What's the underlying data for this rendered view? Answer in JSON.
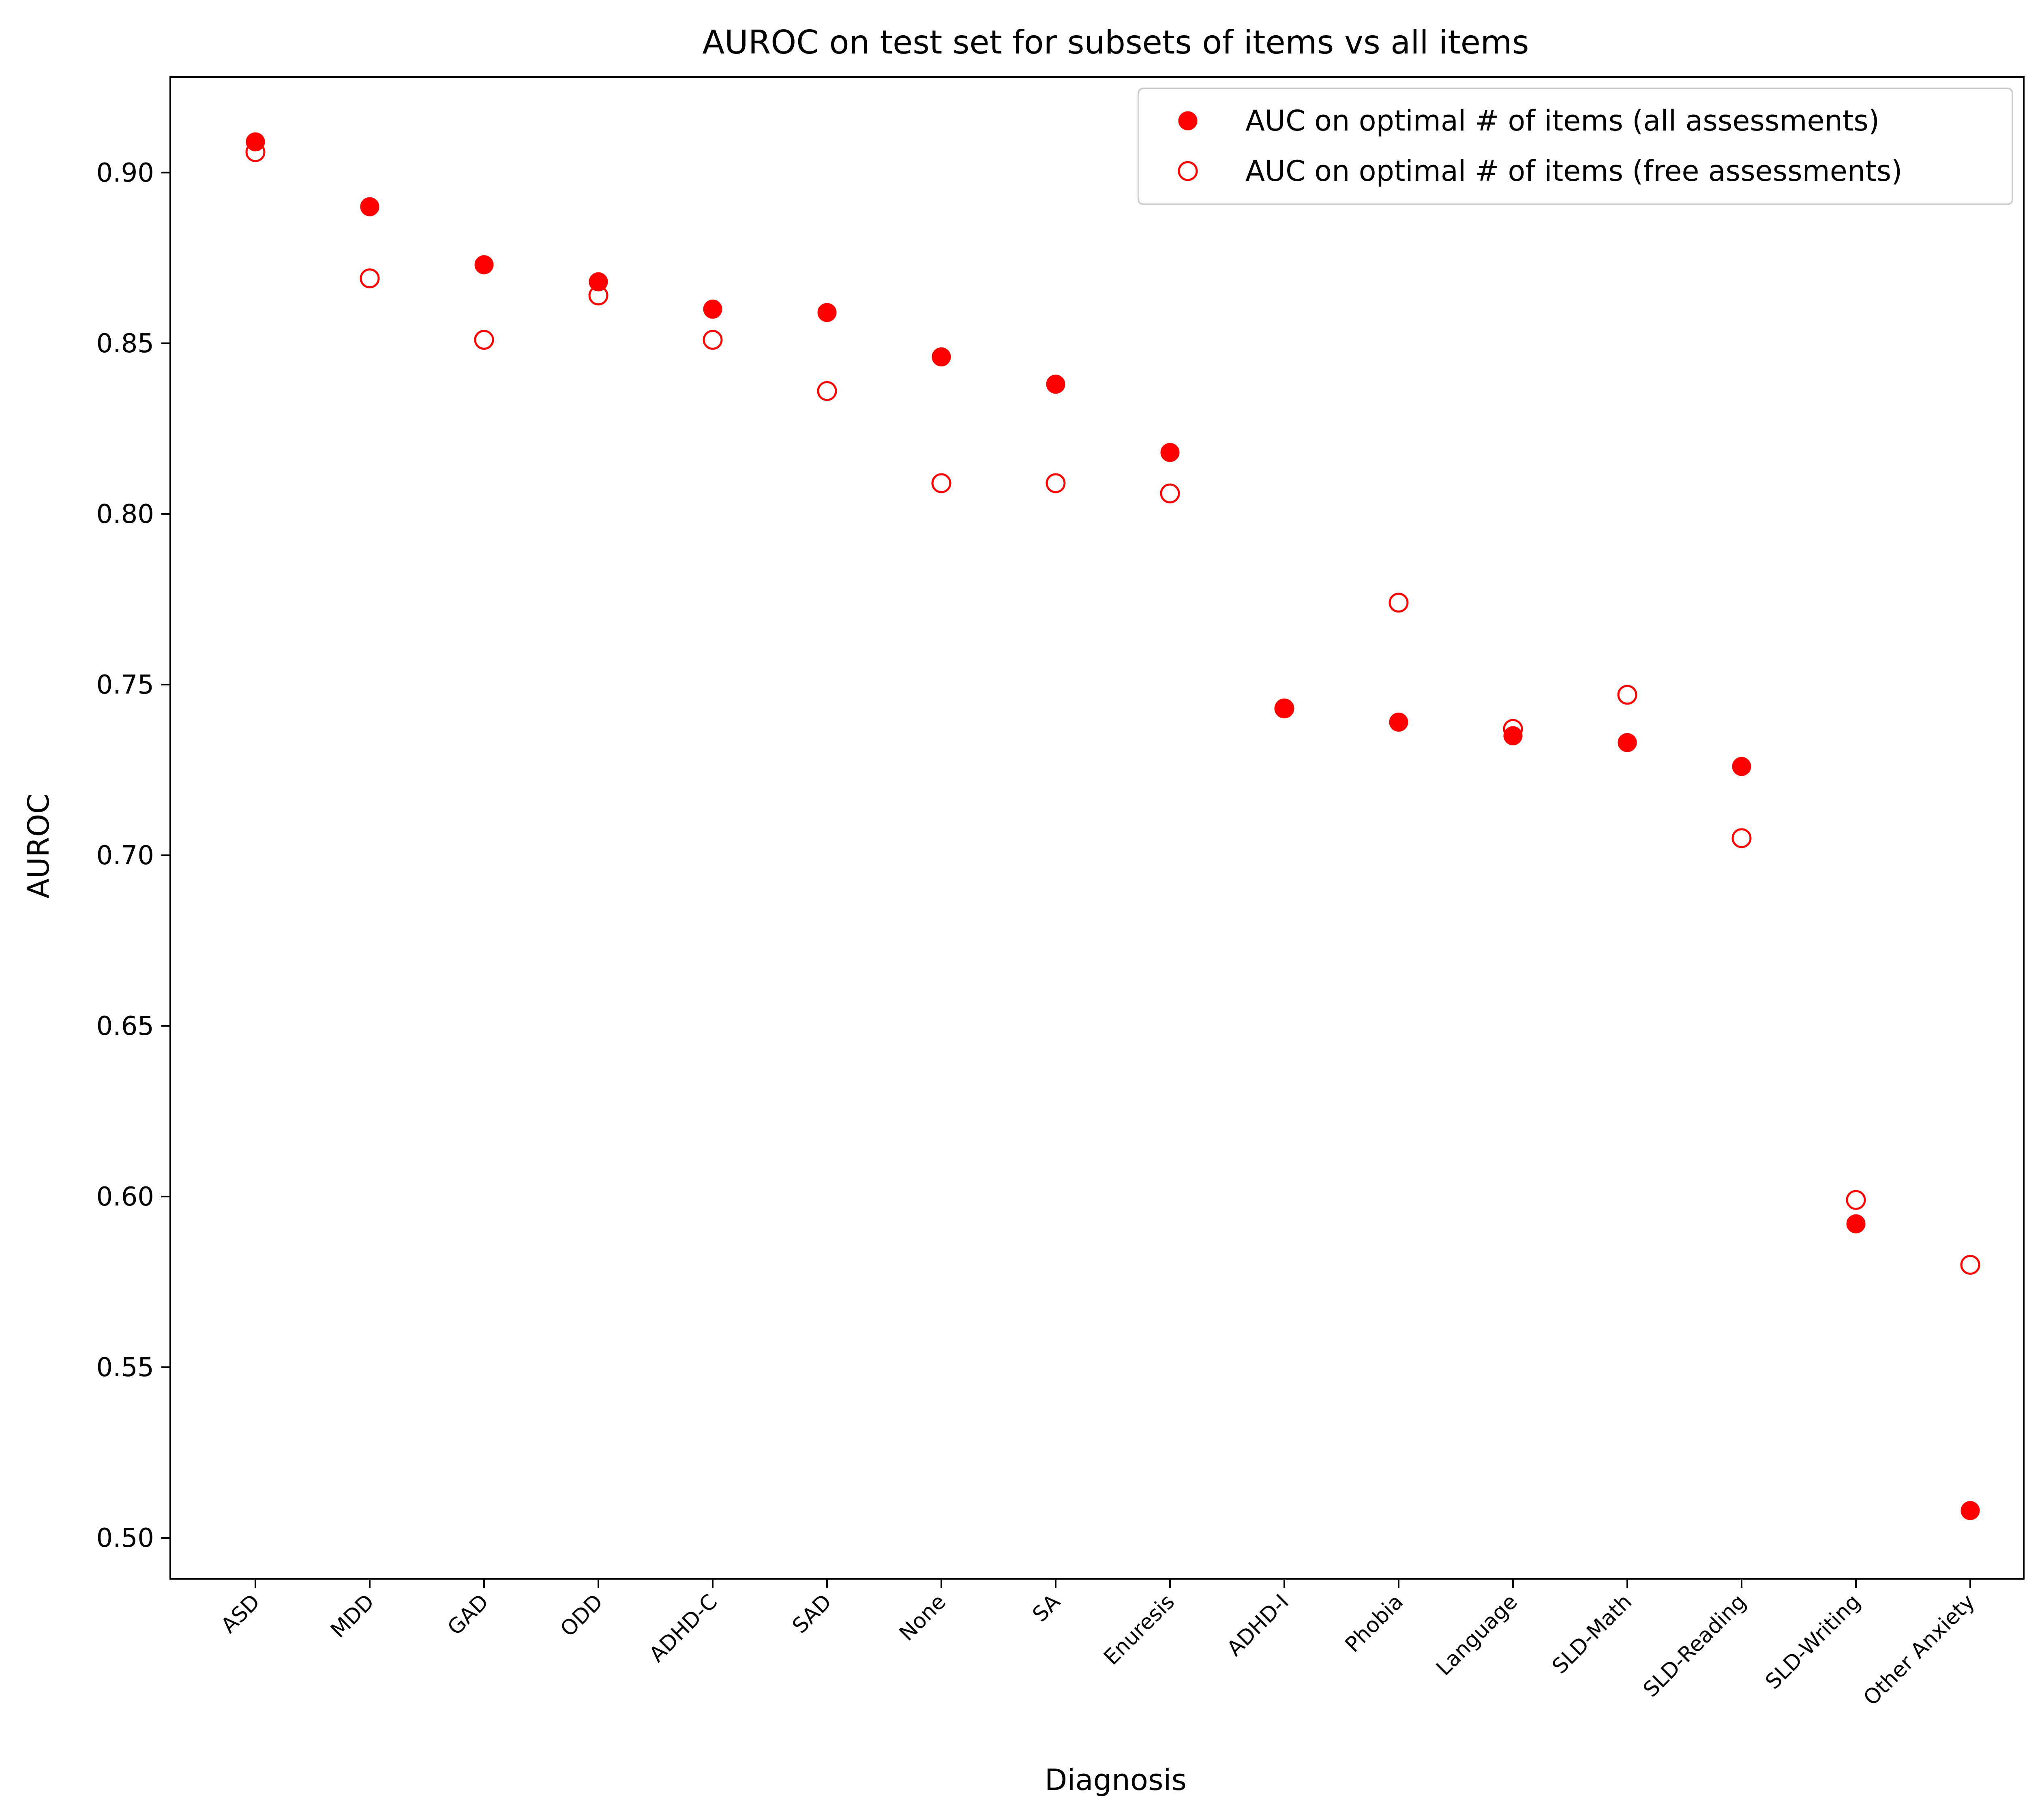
{
  "chart_data": {
    "type": "scatter",
    "title": "AUROC on test set for subsets of items vs all items",
    "xlabel": "Diagnosis",
    "ylabel": "AUROC",
    "categories": [
      "ASD",
      "MDD",
      "GAD",
      "ODD",
      "ADHD-C",
      "SAD",
      "None",
      "SA",
      "Enuresis",
      "ADHD-I",
      "Phobia",
      "Language",
      "SLD-Math",
      "SLD-Reading",
      "SLD-Writing",
      "Other Anxiety"
    ],
    "ylim": [
      0.488,
      0.928
    ],
    "yticks": [
      0.5,
      0.55,
      0.6,
      0.65,
      0.7,
      0.75,
      0.8,
      0.85,
      0.9
    ],
    "ytick_labels": [
      "0.50",
      "0.55",
      "0.60",
      "0.65",
      "0.70",
      "0.75",
      "0.80",
      "0.85",
      "0.90"
    ],
    "grid": false,
    "legend_position": "top-right",
    "series": [
      {
        "name": "AUC on optimal # of items (all assessments)",
        "marker": "filled-circle",
        "color": "#ff0000",
        "values": [
          0.909,
          0.89,
          0.873,
          0.868,
          0.86,
          0.859,
          0.846,
          0.838,
          0.818,
          0.743,
          0.739,
          0.735,
          0.733,
          0.726,
          0.592,
          0.508
        ]
      },
      {
        "name": "AUC on optimal # of items (free assessments)",
        "marker": "open-circle",
        "color": "#ff0000",
        "values": [
          0.906,
          0.869,
          0.851,
          0.864,
          0.851,
          0.836,
          0.809,
          0.809,
          0.806,
          0.743,
          0.774,
          0.737,
          0.747,
          0.705,
          0.599,
          0.58
        ]
      }
    ]
  }
}
